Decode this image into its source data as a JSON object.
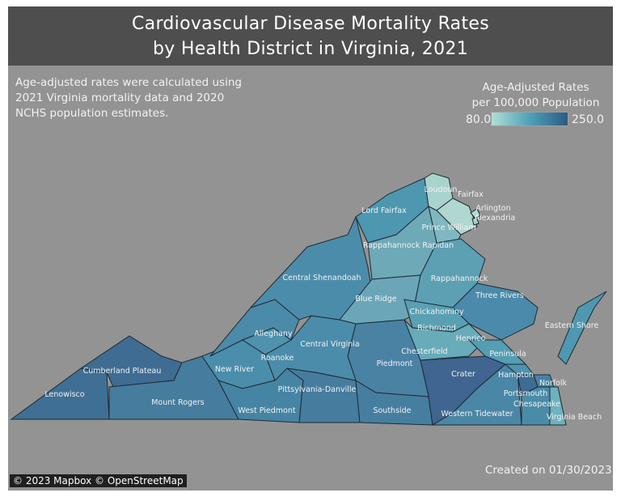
{
  "title": {
    "line1": "Cardiovascular Disease Mortality Rates",
    "line2": "by Health District in Virginia, 2021"
  },
  "note": "Age-adjusted rates were calculated using 2021 Virginia mortality data and 2020 NCHS population estimates.",
  "legend": {
    "title_line1": "Age-Adjusted Rates",
    "title_line2": "per 100,000 Population",
    "min": "80.0",
    "max": "250.0",
    "color_low": "#b3ddd3",
    "color_high": "#2c5a85"
  },
  "created": "Created on 01/30/2023",
  "attribution": "© 2023 Mapbox © OpenStreetMap",
  "districts": [
    {
      "key": "lenowisco",
      "name": "Lenowisco",
      "color": "#3f6f94"
    },
    {
      "key": "cumberland",
      "name": "Cumberland Plateau",
      "color": "#3f6c92"
    },
    {
      "key": "mountrogers",
      "name": "Mount Rogers",
      "color": "#467c9e"
    },
    {
      "key": "newriver",
      "name": "New River",
      "color": "#4b8eab"
    },
    {
      "key": "westpiedmont",
      "name": "West Piedmont",
      "color": "#4684a4"
    },
    {
      "key": "pittsylvania",
      "name": "Pittsylvania-Danville",
      "color": "#467c9e"
    },
    {
      "key": "southside",
      "name": "Southside",
      "color": "#467ea0"
    },
    {
      "key": "crater",
      "name": "Crater",
      "color": "#3f6590"
    },
    {
      "key": "westerntidewater",
      "name": "Western Tidewater",
      "color": "#4a86a6"
    },
    {
      "key": "piedmont",
      "name": "Piedmont",
      "color": "#4a82a3"
    },
    {
      "key": "centralvirginia",
      "name": "Central Virginia",
      "color": "#4b8caa"
    },
    {
      "key": "alleghany",
      "name": "Alleghany",
      "color": "#4b8aa8"
    },
    {
      "key": "roanoke",
      "name": "Roanoke",
      "color": "#4f92ad"
    },
    {
      "key": "centralshenandoah",
      "name": "Central Shenandoah",
      "color": "#4c8cab"
    },
    {
      "key": "lordfairfax",
      "name": "Lord Fairfax",
      "color": "#4d97b0"
    },
    {
      "key": "loudoun",
      "name": "Loudoun",
      "color": "#a9d3cd"
    },
    {
      "key": "fairfax",
      "name": "Fairfax",
      "color": "#b0d7d0"
    },
    {
      "key": "arlington",
      "name": "Arlington",
      "color": "#b3d9d2"
    },
    {
      "key": "alexandria",
      "name": "Alexandria",
      "color": "#a3cfcb"
    },
    {
      "key": "princewilliam",
      "name": "Prince William",
      "color": "#7fb8c0"
    },
    {
      "key": "rappahannockrapidan",
      "name": "Rappahannock Rapidan",
      "color": "#6ea9b8"
    },
    {
      "key": "blueridge",
      "name": "Blue Ridge",
      "color": "#6aa6b8"
    },
    {
      "key": "rappahannock",
      "name": "Rappahannock",
      "color": "#5da0b4"
    },
    {
      "key": "threerivers",
      "name": "Three Rivers",
      "color": "#4b8aab"
    },
    {
      "key": "chickahominy",
      "name": "Chickahominy",
      "color": "#5aa0b3"
    },
    {
      "key": "henrico",
      "name": "Henrico",
      "color": "#5a9fb3"
    },
    {
      "key": "richmond",
      "name": "Richmond",
      "color": "#4f8fab"
    },
    {
      "key": "chesterfield",
      "name": "Chesterfield",
      "color": "#68abb9"
    },
    {
      "key": "peninsula",
      "name": "Peninsula",
      "color": "#549db2"
    },
    {
      "key": "easternshore",
      "name": "Eastern Shore",
      "color": "#4f98b1"
    },
    {
      "key": "hampton",
      "name": "Hampton",
      "color": "#4f92ad"
    },
    {
      "key": "norfolk",
      "name": "Norfolk",
      "color": "#4684a4"
    },
    {
      "key": "portsmouth",
      "name": "Portsmouth",
      "color": "#3f6c92"
    },
    {
      "key": "chesapeake",
      "name": "Chesapeake",
      "color": "#4a8ca8"
    },
    {
      "key": "virginiabeach",
      "name": "Virginia Beach",
      "color": "#6cb3bf"
    }
  ]
}
